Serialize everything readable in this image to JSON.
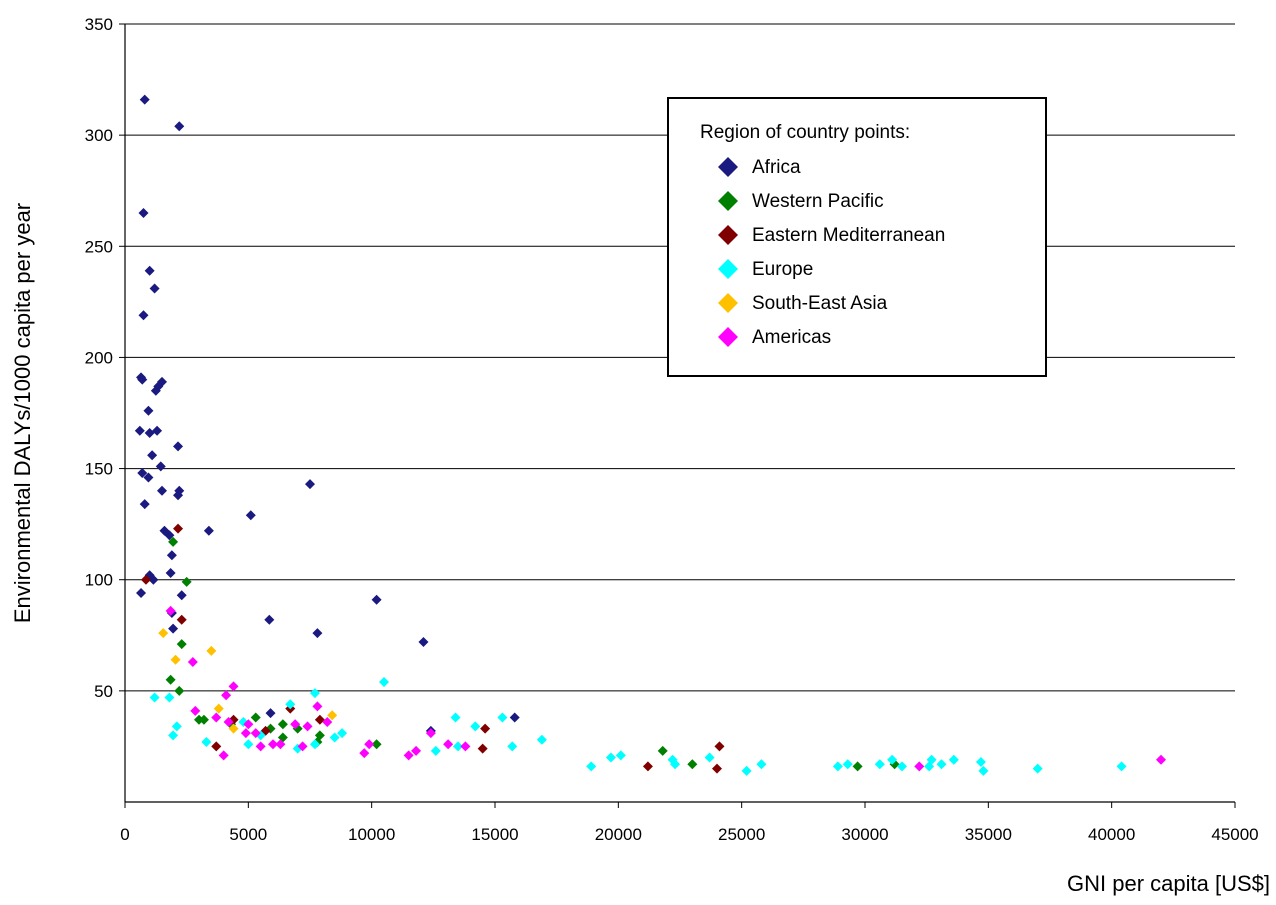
{
  "chart_data": {
    "type": "scatter",
    "title": "",
    "xlabel": "GNI per capita [US$]",
    "ylabel": "Environmental DALYs/1000 capita per year",
    "xlim": [
      0,
      45000
    ],
    "ylim": [
      0,
      350
    ],
    "xticks": [
      0,
      5000,
      10000,
      15000,
      20000,
      25000,
      30000,
      35000,
      40000,
      45000
    ],
    "yticks": [
      50,
      100,
      150,
      200,
      250,
      300,
      350
    ],
    "grid": "horizontal",
    "marker": "diamond",
    "legend": {
      "title": "Region of country points:",
      "position": "top-right"
    },
    "series": [
      {
        "name": "Africa",
        "color": "#1a1a80",
        "points": [
          [
            800,
            316
          ],
          [
            2200,
            304
          ],
          [
            750,
            265
          ],
          [
            1000,
            239
          ],
          [
            1200,
            231
          ],
          [
            750,
            219
          ],
          [
            650,
            191
          ],
          [
            700,
            190
          ],
          [
            1500,
            189
          ],
          [
            1350,
            187
          ],
          [
            1250,
            185
          ],
          [
            950,
            176
          ],
          [
            600,
            167
          ],
          [
            1000,
            166
          ],
          [
            1300,
            167
          ],
          [
            2150,
            160
          ],
          [
            1100,
            156
          ],
          [
            1450,
            151
          ],
          [
            700,
            148
          ],
          [
            950,
            146
          ],
          [
            7500,
            143
          ],
          [
            2200,
            140
          ],
          [
            1500,
            140
          ],
          [
            2150,
            138
          ],
          [
            800,
            134
          ],
          [
            5100,
            129
          ],
          [
            1600,
            122
          ],
          [
            3400,
            122
          ],
          [
            1800,
            120
          ],
          [
            1900,
            111
          ],
          [
            1850,
            103
          ],
          [
            1000,
            102
          ],
          [
            1150,
            100
          ],
          [
            2300,
            93
          ],
          [
            650,
            94
          ],
          [
            10200,
            91
          ],
          [
            1900,
            85
          ],
          [
            5850,
            82
          ],
          [
            1950,
            78
          ],
          [
            7800,
            76
          ],
          [
            12100,
            72
          ],
          [
            15800,
            38
          ],
          [
            12400,
            32
          ],
          [
            5900,
            40
          ]
        ]
      },
      {
        "name": "Western Pacific",
        "color": "#008000",
        "points": [
          [
            1950,
            117
          ],
          [
            2500,
            99
          ],
          [
            2300,
            71
          ],
          [
            1850,
            55
          ],
          [
            2200,
            50
          ],
          [
            3000,
            37
          ],
          [
            3200,
            37
          ],
          [
            4300,
            35
          ],
          [
            5300,
            38
          ],
          [
            5900,
            33
          ],
          [
            6400,
            29
          ],
          [
            6400,
            35
          ],
          [
            7000,
            33
          ],
          [
            7900,
            30
          ],
          [
            7800,
            27
          ],
          [
            10200,
            26
          ],
          [
            21800,
            23
          ],
          [
            23000,
            17
          ],
          [
            29700,
            16
          ],
          [
            31200,
            17
          ]
        ]
      },
      {
        "name": "Eastern Mediterranean",
        "color": "#800000",
        "points": [
          [
            2150,
            123
          ],
          [
            850,
            100
          ],
          [
            2300,
            82
          ],
          [
            3700,
            25
          ],
          [
            4400,
            37
          ],
          [
            5700,
            32
          ],
          [
            6700,
            42
          ],
          [
            7900,
            37
          ],
          [
            14500,
            24
          ],
          [
            14600,
            33
          ],
          [
            21200,
            16
          ],
          [
            24100,
            25
          ],
          [
            24000,
            15
          ]
        ]
      },
      {
        "name": "Europe",
        "color": "#00ffff",
        "points": [
          [
            1200,
            47
          ],
          [
            1800,
            47
          ],
          [
            1950,
            30
          ],
          [
            2100,
            34
          ],
          [
            3300,
            27
          ],
          [
            4800,
            36
          ],
          [
            5000,
            26
          ],
          [
            5500,
            30
          ],
          [
            6700,
            44
          ],
          [
            7000,
            24
          ],
          [
            7700,
            49
          ],
          [
            7700,
            26
          ],
          [
            8500,
            29
          ],
          [
            8800,
            31
          ],
          [
            10500,
            54
          ],
          [
            12600,
            23
          ],
          [
            13400,
            38
          ],
          [
            13500,
            25
          ],
          [
            14200,
            34
          ],
          [
            15300,
            38
          ],
          [
            15700,
            25
          ],
          [
            16900,
            28
          ],
          [
            18900,
            16
          ],
          [
            19700,
            20
          ],
          [
            20100,
            21
          ],
          [
            22200,
            19
          ],
          [
            22300,
            17
          ],
          [
            23700,
            20
          ],
          [
            25200,
            14
          ],
          [
            25800,
            17
          ],
          [
            28900,
            16
          ],
          [
            29300,
            17
          ],
          [
            30600,
            17
          ],
          [
            31100,
            19
          ],
          [
            31500,
            16
          ],
          [
            32600,
            16
          ],
          [
            32700,
            19
          ],
          [
            33100,
            17
          ],
          [
            33600,
            19
          ],
          [
            34700,
            18
          ],
          [
            34800,
            14
          ],
          [
            37000,
            15
          ],
          [
            40400,
            16
          ]
        ]
      },
      {
        "name": "South-East Asia",
        "color": "#ffc000",
        "points": [
          [
            1550,
            76
          ],
          [
            2050,
            64
          ],
          [
            3500,
            68
          ],
          [
            3800,
            42
          ],
          [
            4400,
            33
          ],
          [
            8400,
            39
          ]
        ]
      },
      {
        "name": "Americas",
        "color": "#ff00ff",
        "points": [
          [
            1850,
            86
          ],
          [
            2750,
            63
          ],
          [
            2850,
            41
          ],
          [
            3700,
            38
          ],
          [
            4100,
            48
          ],
          [
            4400,
            52
          ],
          [
            4000,
            21
          ],
          [
            4200,
            36
          ],
          [
            4900,
            31
          ],
          [
            5000,
            35
          ],
          [
            5300,
            31
          ],
          [
            5500,
            25
          ],
          [
            6000,
            26
          ],
          [
            6300,
            26
          ],
          [
            6900,
            35
          ],
          [
            7400,
            34
          ],
          [
            7800,
            43
          ],
          [
            7200,
            25
          ],
          [
            8200,
            36
          ],
          [
            9700,
            22
          ],
          [
            9900,
            26
          ],
          [
            11500,
            21
          ],
          [
            11800,
            23
          ],
          [
            12400,
            31
          ],
          [
            13100,
            26
          ],
          [
            13800,
            25
          ],
          [
            32200,
            16
          ],
          [
            42000,
            19
          ]
        ]
      }
    ]
  }
}
